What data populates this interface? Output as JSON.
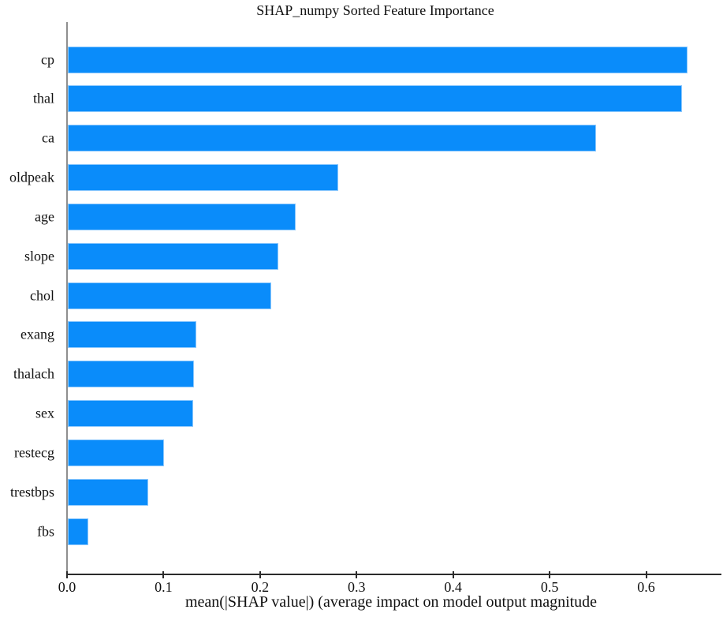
{
  "chart_data": {
    "type": "bar",
    "orientation": "horizontal",
    "title": "SHAP_numpy Sorted Feature Importance",
    "xlabel": "mean(|SHAP value|) (average impact on model output magnitude",
    "ylabel": "",
    "categories": [
      "cp",
      "thal",
      "ca",
      "oldpeak",
      "age",
      "slope",
      "chol",
      "exang",
      "thalach",
      "sex",
      "restecg",
      "trestbps",
      "fbs"
    ],
    "values": [
      0.642,
      0.636,
      0.547,
      0.28,
      0.236,
      0.218,
      0.211,
      0.133,
      0.131,
      0.13,
      0.1,
      0.083,
      0.021
    ],
    "xlim": [
      0,
      0.678
    ],
    "xticks": [
      0.0,
      0.1,
      0.2,
      0.3,
      0.4,
      0.5,
      0.6
    ],
    "xtick_labels": [
      "0.0",
      "0.1",
      "0.2",
      "0.3",
      "0.4",
      "0.5",
      "0.6"
    ],
    "grid": false,
    "legend": "none",
    "bar_color": "#0a8cfa",
    "background_color": "#ffffff",
    "spine_color_left": "#8f8f8f",
    "spine_color_bottom": "#2b2b2b",
    "text_color": "#111111"
  }
}
